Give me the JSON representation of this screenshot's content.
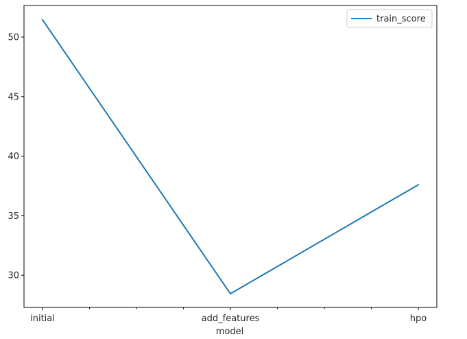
{
  "chart_data": {
    "type": "line",
    "title": "",
    "xlabel": "model",
    "ylabel": "",
    "categories": [
      "initial",
      "add_features",
      "hpo"
    ],
    "series": [
      {
        "name": "train_score",
        "values": [
          51.45,
          28.45,
          37.6
        ],
        "color": "#1f77b4"
      }
    ],
    "ylim": [
      27.3,
      52.65
    ],
    "yticks": [
      30,
      35,
      40,
      45,
      50
    ],
    "minor_x_ticks_per_gap": 3,
    "grid": false,
    "legend": {
      "location": "top-right",
      "entries": [
        "train_score"
      ]
    },
    "axis_color": "#000000",
    "tick_label_color": "#262626"
  }
}
